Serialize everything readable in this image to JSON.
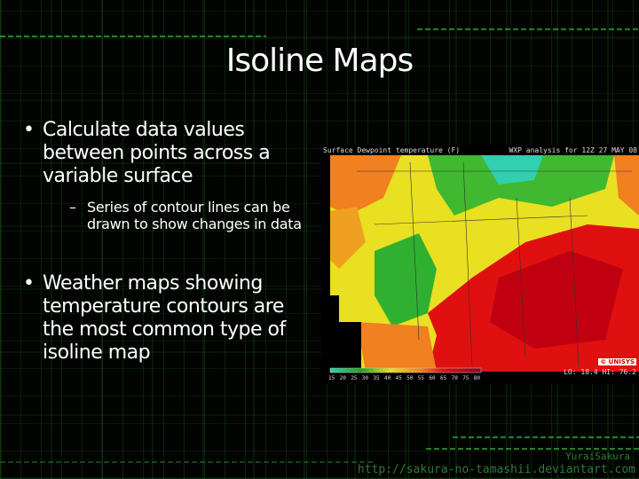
{
  "slide": {
    "title": "Isoline Maps",
    "bullets": [
      {
        "text": "Calculate data values between points across a variable surface",
        "sub": [
          "Series of contour lines can be drawn to show changes in data"
        ]
      },
      {
        "text": "Weather maps showing temperature contours are the most common type of isoline map"
      }
    ]
  },
  "map": {
    "header_left": "Surface Dewpoint temperature (F)",
    "header_right": "WXP analysis for 12Z 27 MAY 08",
    "logo": "© UNISYS",
    "lo_hi": "LO: 18.4  HI: 76.2",
    "colorbar_ticks": [
      "15",
      "20",
      "25",
      "30",
      "35",
      "40",
      "45",
      "50",
      "55",
      "60",
      "65",
      "70",
      "75",
      "80"
    ],
    "colors": {
      "low": "#30d0b0",
      "green": "#30b030",
      "yellow": "#e8e020",
      "orange": "#f08020",
      "red": "#e01010",
      "darkred": "#a00010"
    }
  },
  "watermark": {
    "line1": "YuraiSakura",
    "line2": "http://sakura-no-tamashii.deviantart.com"
  }
}
